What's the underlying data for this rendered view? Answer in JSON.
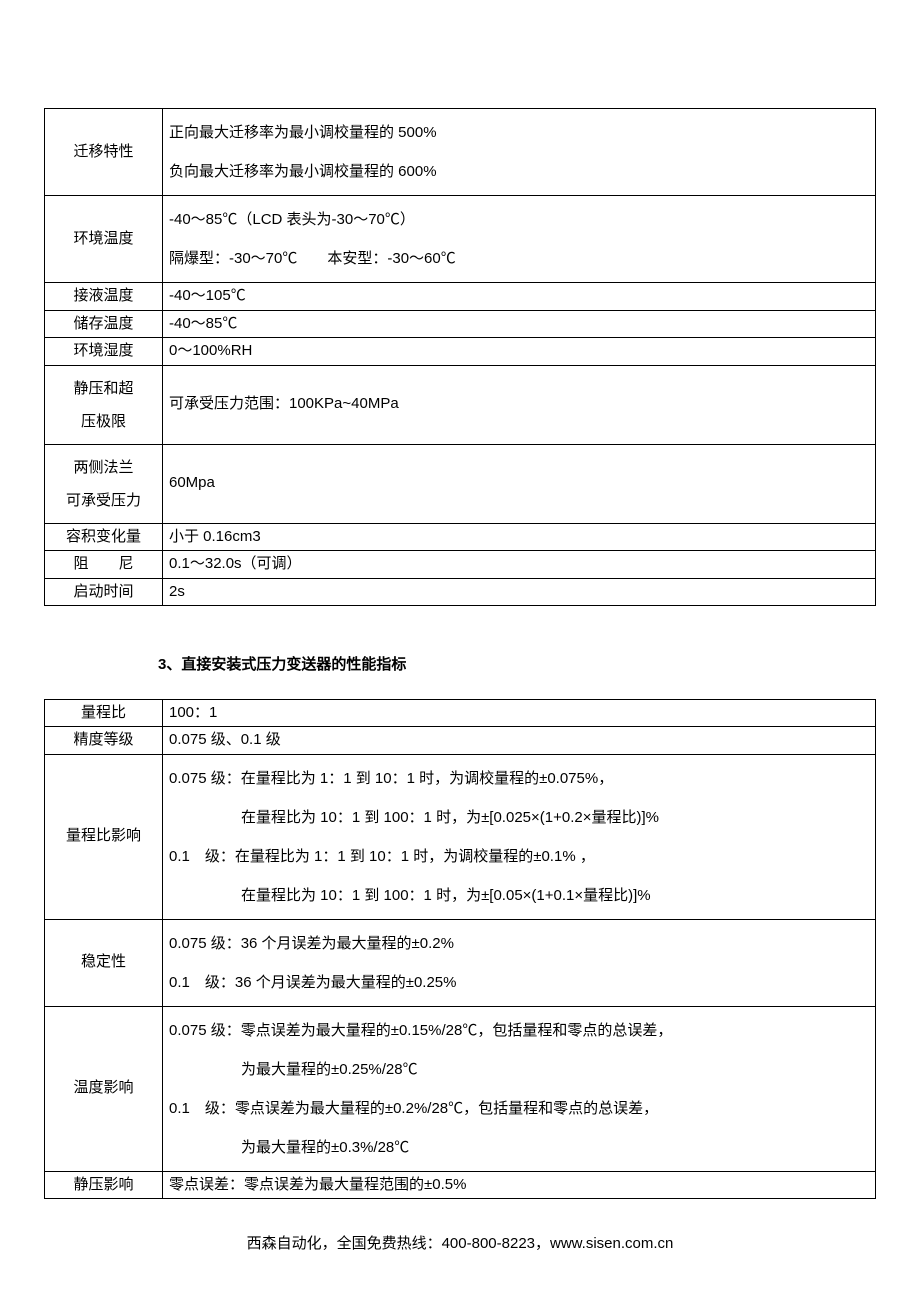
{
  "table1": {
    "rows": [
      {
        "label": "迁移特性",
        "value": "正向最大迁移率为最小调校量程的 500%\n负向最大迁移率为最小调校量程的 600%",
        "multiLine": true
      },
      {
        "label": "环境温度",
        "value": "-40～85℃（LCD 表头为-30～70℃）\n隔爆型：-30～70℃  本安型：-30～60℃",
        "multiLine": true
      },
      {
        "label": "接液温度",
        "value": "-40～105℃"
      },
      {
        "label": "储存温度",
        "value": "-40～85℃"
      },
      {
        "label": "环境湿度",
        "value": "0～100%RH"
      },
      {
        "label": "静压和超\n压极限",
        "value": "可承受压力范围：100KPa~40MPa",
        "labelTwoLine": true
      },
      {
        "label": "两侧法兰\n可承受压力",
        "value": "60Mpa",
        "labelTwoLine": true
      },
      {
        "label": "容积变化量",
        "value": "小于 0.16cm3"
      },
      {
        "label": "阻  尼",
        "value": "0.1～32.0s（可调）"
      },
      {
        "label": "启动时间",
        "value": "2s"
      }
    ]
  },
  "heading": "3、直接安装式压力变送器的性能指标",
  "table2": {
    "rows": [
      {
        "label": "量程比",
        "value": "100：1"
      },
      {
        "label": "精度等级",
        "value": "0.075 级、0.1 级"
      },
      {
        "label": "量程比影响",
        "lines": [
          {
            "text": "0.075 级：在量程比为 1：1 到 10：1 时，为调校量程的±0.075%，",
            "indent": false
          },
          {
            "text": "在量程比为 10：1 到 100：1 时，为±[0.025×(1+0.2×量程比)]%",
            "indent": true
          },
          {
            "text": "0.1  级：在量程比为 1：1 到 10：1 时，为调校量程的±0.1% ，",
            "indent": false
          },
          {
            "text": "在量程比为 10：1 到 100：1 时，为±[0.05×(1+0.1×量程比)]%",
            "indent": true
          }
        ]
      },
      {
        "label": "稳定性",
        "lines": [
          {
            "text": "0.075 级：36 个月误差为最大量程的±0.2%",
            "indent": false
          },
          {
            "text": "0.1  级：36 个月误差为最大量程的±0.25%",
            "indent": false
          }
        ]
      },
      {
        "label": "温度影响",
        "lines": [
          {
            "text": "0.075 级：零点误差为最大量程的±0.15%/28℃，包括量程和零点的总误差，",
            "indent": false
          },
          {
            "text": "为最大量程的±0.25%/28℃",
            "indent": true
          },
          {
            "text": "0.1  级：零点误差为最大量程的±0.2%/28℃，包括量程和零点的总误差，",
            "indent": false
          },
          {
            "text": "为最大量程的±0.3%/28℃",
            "indent": true
          }
        ]
      },
      {
        "label": "静压影响",
        "value": "零点误差：零点误差为最大量程范围的±0.5%"
      }
    ]
  },
  "footer": "西森自动化，全国免费热线：400-800-8223，www.sisen.com.cn"
}
